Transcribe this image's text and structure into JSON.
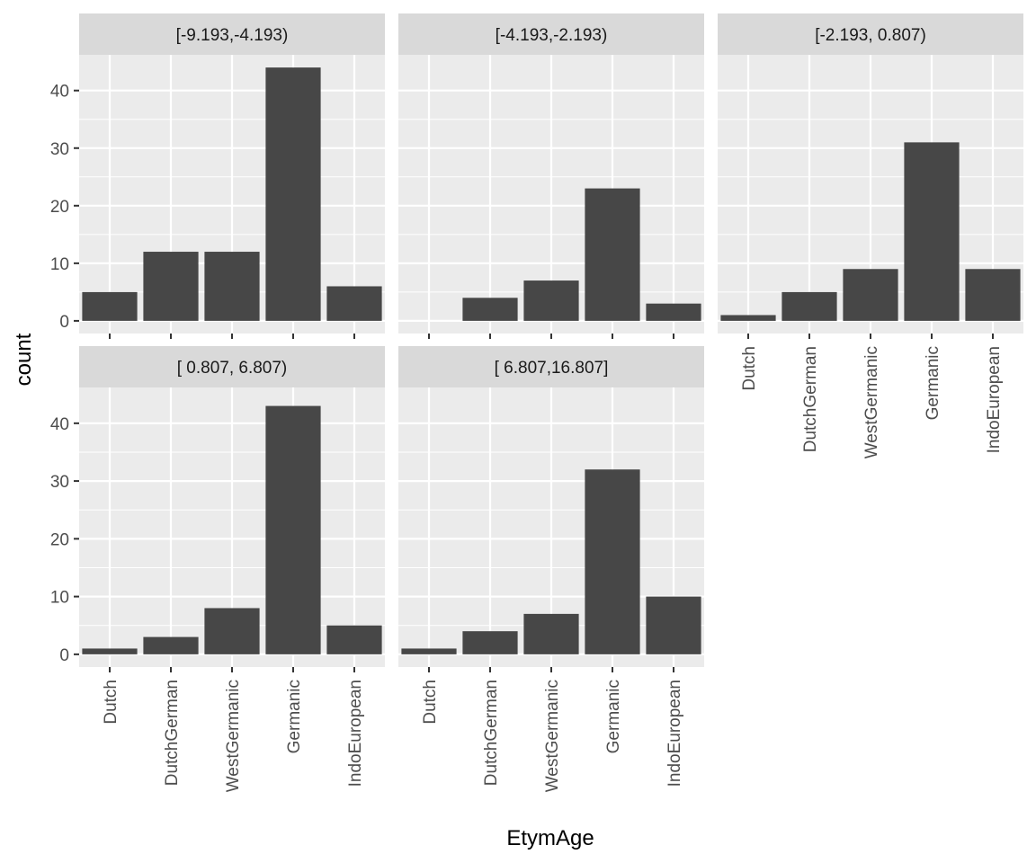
{
  "chart_data": {
    "type": "bar",
    "layout": "facet_wrap",
    "xlabel": "EtymAge",
    "ylabel": "count",
    "categories": [
      "Dutch",
      "DutchGerman",
      "WestGermanic",
      "Germanic",
      "IndoEuropean"
    ],
    "yticks": [
      0,
      10,
      20,
      30,
      40
    ],
    "ylim": [
      -2.2,
      46.2
    ],
    "grid": true,
    "bar_color": "#474747",
    "panel_background": "#ebebeb",
    "strip_background": "#d9d9d9",
    "facets": [
      {
        "label": "[-9.193,-4.193)",
        "values": [
          5,
          12,
          12,
          44,
          6
        ]
      },
      {
        "label": "[-4.193,-2.193)",
        "values": [
          0,
          4,
          7,
          23,
          3
        ]
      },
      {
        "label": "[-2.193, 0.807)",
        "values": [
          1,
          5,
          9,
          31,
          9
        ]
      },
      {
        "label": "[ 0.807, 6.807)",
        "values": [
          1,
          3,
          8,
          43,
          5
        ]
      },
      {
        "label": "[ 6.807,16.807]",
        "values": [
          1,
          4,
          7,
          32,
          10
        ]
      }
    ]
  }
}
